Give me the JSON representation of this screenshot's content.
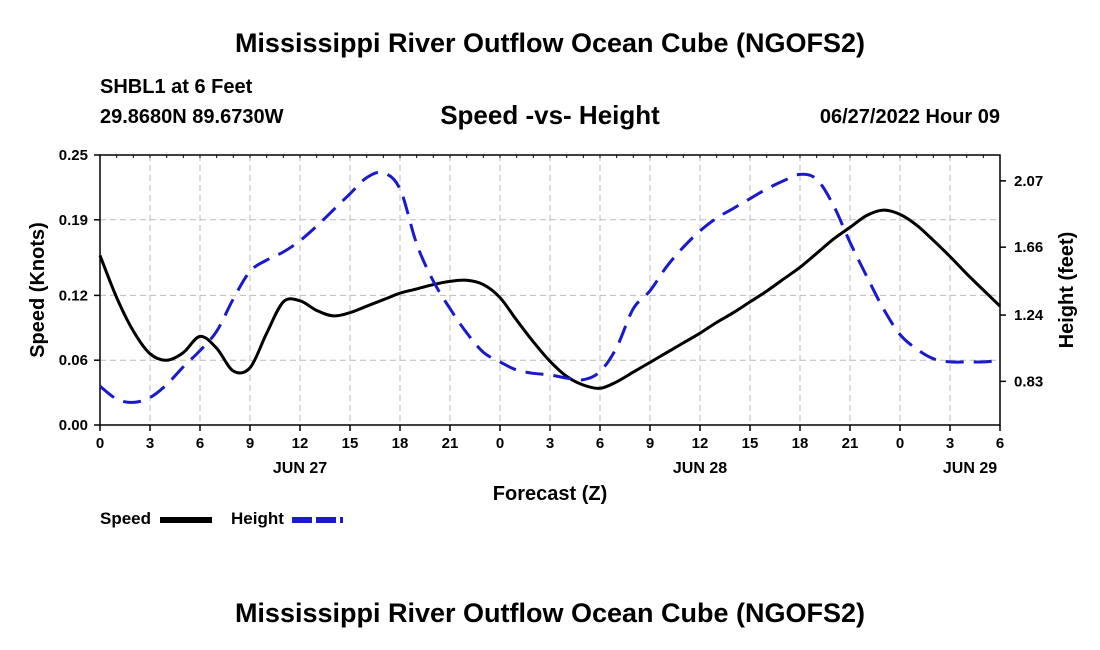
{
  "title": "Mississippi River Outflow Ocean Cube (NGOFS2)",
  "bottom_title": "Mississippi River Outflow Ocean Cube (NGOFS2)",
  "station": "SHBL1 at 6 Feet",
  "coords": "29.8680N  89.6730W",
  "subtitle": "Speed -vs- Height",
  "datetime": "06/27/2022 Hour 09",
  "colors": {
    "speed": "#000000",
    "height": "#1a1acc",
    "grid": "#bbbbbb"
  },
  "legend": {
    "speed": "Speed",
    "height": "Height"
  },
  "chart_data": {
    "type": "line",
    "xlabel": "Forecast (Z)",
    "ylabel": "Speed (Knots)",
    "y2label": "Height (feet)",
    "x_range_hours": [
      0,
      54
    ],
    "x_ticks": [
      "0",
      "3",
      "6",
      "9",
      "12",
      "15",
      "18",
      "21",
      "0",
      "3",
      "6",
      "9",
      "12",
      "15",
      "18",
      "21",
      "0",
      "3",
      "6"
    ],
    "day_labels": [
      {
        "label": "JUN 27",
        "hour": 12
      },
      {
        "label": "JUN 28",
        "hour": 36
      },
      {
        "label": "JUN 29",
        "hour": 52.2
      }
    ],
    "ylim": [
      0,
      0.25
    ],
    "y_ticks": [
      "0.00",
      "0.06",
      "0.12",
      "0.19",
      "0.25"
    ],
    "y2lim": [
      0.56,
      2.23
    ],
    "y2_ticks": [
      "0.83",
      "1.24",
      "1.66",
      "2.07"
    ],
    "series": [
      {
        "name": "Speed",
        "axis": "left",
        "style": "solid",
        "x": [
          0,
          1,
          2,
          3,
          4,
          5,
          6,
          7,
          8,
          9,
          10,
          11,
          12,
          13,
          14,
          15,
          16,
          17,
          18,
          19,
          20,
          21,
          22,
          23,
          24,
          25,
          26,
          27,
          28,
          29,
          30,
          31,
          32,
          33,
          34,
          35,
          36,
          37,
          38,
          39,
          40,
          41,
          42,
          43,
          44,
          45,
          46,
          47,
          48,
          49,
          50,
          51,
          52,
          53,
          54
        ],
        "values": [
          0.157,
          0.118,
          0.087,
          0.066,
          0.06,
          0.067,
          0.082,
          0.071,
          0.05,
          0.053,
          0.085,
          0.114,
          0.115,
          0.106,
          0.101,
          0.104,
          0.11,
          0.116,
          0.122,
          0.126,
          0.13,
          0.133,
          0.134,
          0.13,
          0.118,
          0.097,
          0.077,
          0.059,
          0.045,
          0.037,
          0.034,
          0.04,
          0.049,
          0.058,
          0.067,
          0.076,
          0.085,
          0.095,
          0.104,
          0.114,
          0.124,
          0.135,
          0.146,
          0.159,
          0.172,
          0.183,
          0.194,
          0.199,
          0.195,
          0.185,
          0.171,
          0.156,
          0.14,
          0.125,
          0.11
        ]
      },
      {
        "name": "Height",
        "axis": "right",
        "style": "dashed",
        "x": [
          0,
          1,
          2,
          3,
          4,
          5,
          6,
          7,
          8,
          9,
          10,
          11,
          12,
          13,
          14,
          15,
          16,
          17,
          18,
          19,
          20,
          21,
          22,
          23,
          24,
          25,
          26,
          27,
          28,
          29,
          30,
          31,
          32,
          33,
          34,
          35,
          36,
          37,
          38,
          39,
          40,
          41,
          42,
          43,
          44,
          45,
          46,
          47,
          48,
          49,
          50,
          51,
          52,
          53,
          54
        ],
        "values": [
          0.8,
          0.72,
          0.7,
          0.73,
          0.81,
          0.92,
          1.02,
          1.14,
          1.34,
          1.51,
          1.58,
          1.63,
          1.7,
          1.79,
          1.89,
          1.99,
          2.09,
          2.12,
          2.02,
          1.68,
          1.45,
          1.28,
          1.13,
          1.01,
          0.95,
          0.9,
          0.88,
          0.87,
          0.85,
          0.84,
          0.89,
          1.04,
          1.28,
          1.39,
          1.54,
          1.66,
          1.76,
          1.84,
          1.9,
          1.96,
          2.02,
          2.07,
          2.11,
          2.08,
          1.92,
          1.69,
          1.48,
          1.28,
          1.12,
          1.03,
          0.97,
          0.95,
          0.95,
          0.95,
          0.96
        ]
      }
    ]
  }
}
